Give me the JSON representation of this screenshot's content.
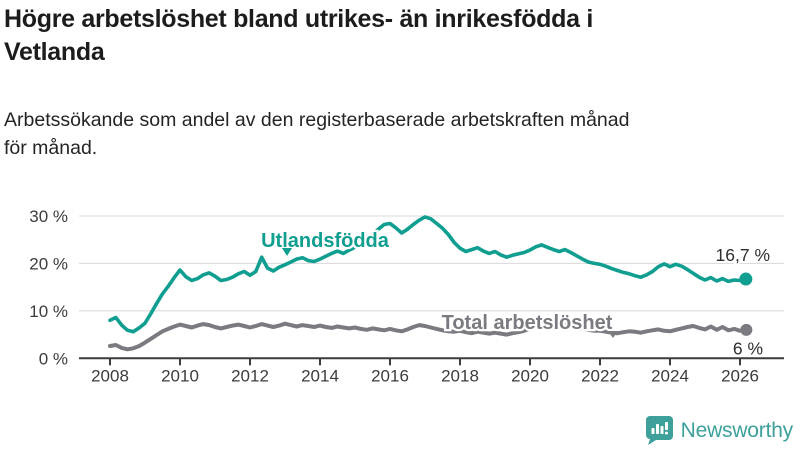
{
  "header": {
    "title_lines": [
      "Högre arbetslöshet bland utrikes- än inrikesfödda i",
      "Vetlanda"
    ],
    "subtitle_lines": [
      "Arbetssökande som andel av den registerbaserade arbetskraften månad",
      "för månad."
    ]
  },
  "chart_data": {
    "type": "line",
    "title": "Högre arbetslöshet bland utrikes- än inrikesfödda i Vetlanda",
    "subtitle": "Arbetssökande som andel av den registerbaserade arbetskraften månad för månad.",
    "x_start_year": 2008,
    "x_step_years": 0.1666667,
    "x_tick_labels": [
      "2008",
      "2010",
      "2012",
      "2014",
      "2016",
      "2018",
      "2020",
      "2022",
      "2024",
      "2026"
    ],
    "y_ticks": [
      0,
      10,
      20,
      30
    ],
    "y_tick_labels": [
      "0 %",
      "10 %",
      "20 %",
      "30 %"
    ],
    "ylim": [
      0,
      31
    ],
    "grid": true,
    "unit": "%",
    "legend_position": "inline-labels",
    "series": [
      {
        "name": "Total arbetslöshet",
        "color": "#7a7a80",
        "end_label": "6 %",
        "last_value": 6.0,
        "values": [
          2.6,
          2.8,
          2.2,
          1.9,
          2.1,
          2.6,
          3.3,
          4.1,
          4.9,
          5.7,
          6.2,
          6.7,
          7.1,
          6.8,
          6.5,
          6.9,
          7.2,
          7.0,
          6.6,
          6.3,
          6.6,
          6.9,
          7.1,
          6.8,
          6.5,
          6.8,
          7.2,
          6.9,
          6.6,
          6.9,
          7.3,
          7.0,
          6.7,
          7.0,
          6.8,
          6.6,
          6.9,
          6.6,
          6.4,
          6.7,
          6.5,
          6.3,
          6.5,
          6.2,
          6.0,
          6.3,
          6.1,
          5.9,
          6.2,
          5.9,
          5.7,
          6.1,
          6.6,
          7.0,
          6.8,
          6.5,
          6.2,
          5.9,
          5.7,
          5.6,
          5.8,
          5.5,
          5.3,
          5.6,
          5.4,
          5.2,
          5.4,
          5.2,
          5.0,
          5.3,
          5.5,
          5.8,
          6.3,
          7.0,
          7.5,
          7.3,
          7.1,
          6.9,
          7.1,
          6.8,
          6.5,
          6.2,
          6.0,
          5.8,
          5.8,
          5.6,
          5.4,
          5.3,
          5.5,
          5.7,
          5.6,
          5.4,
          5.7,
          5.9,
          6.1,
          5.8,
          5.7,
          6.0,
          6.3,
          6.6,
          6.8,
          6.4,
          6.1,
          6.7,
          6.0,
          6.6,
          5.9,
          6.2,
          5.8,
          6.0
        ]
      },
      {
        "name": "Utlandsfödda",
        "color": "#0f9e90",
        "end_label": "16,7 %",
        "last_value": 16.7,
        "values": [
          8.0,
          8.6,
          7.0,
          5.9,
          5.6,
          6.4,
          7.4,
          9.4,
          11.6,
          13.6,
          15.2,
          17.0,
          18.6,
          17.2,
          16.4,
          16.8,
          17.6,
          18.0,
          17.3,
          16.4,
          16.6,
          17.1,
          17.8,
          18.3,
          17.5,
          18.3,
          21.3,
          19.0,
          18.4,
          19.2,
          19.7,
          20.3,
          20.9,
          21.2,
          20.6,
          20.4,
          20.9,
          21.5,
          22.1,
          22.6,
          22.1,
          22.8,
          23.4,
          24.1,
          25.0,
          26.1,
          27.2,
          28.2,
          28.4,
          27.5,
          26.4,
          27.2,
          28.2,
          29.1,
          29.8,
          29.4,
          28.4,
          27.4,
          26.1,
          24.4,
          23.2,
          22.5,
          22.9,
          23.3,
          22.6,
          22.1,
          22.5,
          21.8,
          21.3,
          21.7,
          22.0,
          22.3,
          22.8,
          23.5,
          23.9,
          23.4,
          22.9,
          22.5,
          22.9,
          22.3,
          21.6,
          20.9,
          20.3,
          20.0,
          19.8,
          19.4,
          18.9,
          18.5,
          18.1,
          17.8,
          17.4,
          17.1,
          17.6,
          18.3,
          19.3,
          19.9,
          19.3,
          19.8,
          19.4,
          18.7,
          17.9,
          17.1,
          16.5,
          17.0,
          16.3,
          16.8,
          16.2,
          16.5,
          16.4,
          16.7
        ]
      }
    ]
  },
  "branding": {
    "logo_text": "Newsworthy",
    "logo_color": "#3da09a",
    "logo_icon": "bar-chart-speech-bubble-icon"
  },
  "colors": {
    "axis": "#3c3c3c",
    "grid": "#d8d8d8",
    "value_label": "#2e2e2e"
  }
}
